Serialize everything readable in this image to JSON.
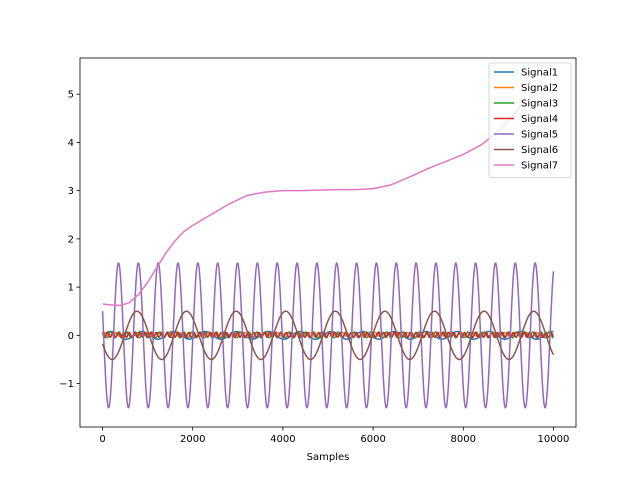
{
  "chart_data": {
    "type": "line",
    "title": "",
    "xlabel": "Samples",
    "ylabel": "",
    "xlim": [
      -500,
      10500
    ],
    "ylim": [
      -1.9,
      5.75
    ],
    "x_ticks": [
      0,
      2000,
      4000,
      6000,
      8000,
      10000
    ],
    "x_tick_labels": [
      "0",
      "2000",
      "4000",
      "6000",
      "8000",
      "10000"
    ],
    "y_ticks": [
      -1,
      0,
      1,
      2,
      3,
      4,
      5
    ],
    "y_tick_labels": [
      "−1",
      "0",
      "1",
      "2",
      "3",
      "4",
      "5"
    ],
    "grid": false,
    "legend_position": "top-right",
    "series": [
      {
        "name": "Signal1",
        "color": "#1f77b4",
        "kind": "oscillation",
        "amplitude": 0.08,
        "offset": 0,
        "period": 700,
        "x_range": [
          0,
          10000
        ]
      },
      {
        "name": "Signal2",
        "color": "#ff7f0e",
        "kind": "oscillation",
        "amplitude": 0.04,
        "offset": 0.02,
        "period": 240,
        "x_range": [
          0,
          10000
        ]
      },
      {
        "name": "Signal3",
        "color": "#2ca02c",
        "kind": "oscillation",
        "amplitude": 0.06,
        "offset": 0.01,
        "period": 180,
        "x_range": [
          0,
          10000
        ]
      },
      {
        "name": "Signal4",
        "color": "#d62728",
        "kind": "oscillation",
        "amplitude": 0.05,
        "offset": 0.01,
        "period": 120,
        "x_range": [
          0,
          10000
        ]
      },
      {
        "name": "Signal5",
        "color": "#9467bd",
        "kind": "oscillation",
        "amplitude": 1.5,
        "offset": 0,
        "period": 440,
        "x_range": [
          0,
          10000
        ]
      },
      {
        "name": "Signal6",
        "color": "#8c564b",
        "kind": "oscillation",
        "amplitude": 0.5,
        "offset": 0,
        "period": 1100,
        "x_range": [
          0,
          10000
        ]
      },
      {
        "name": "Signal7",
        "color": "#e377c2",
        "kind": "curve",
        "x_range": [
          0,
          9350
        ],
        "points": [
          [
            0,
            0.65
          ],
          [
            200,
            0.63
          ],
          [
            400,
            0.62
          ],
          [
            600,
            0.68
          ],
          [
            800,
            0.85
          ],
          [
            1000,
            1.1
          ],
          [
            1200,
            1.4
          ],
          [
            1400,
            1.7
          ],
          [
            1600,
            1.95
          ],
          [
            1800,
            2.15
          ],
          [
            2000,
            2.28
          ],
          [
            2400,
            2.5
          ],
          [
            2800,
            2.72
          ],
          [
            3200,
            2.9
          ],
          [
            3600,
            2.97
          ],
          [
            4000,
            3.0
          ],
          [
            4400,
            3.0
          ],
          [
            4800,
            3.01
          ],
          [
            5200,
            3.02
          ],
          [
            5600,
            3.02
          ],
          [
            6000,
            3.04
          ],
          [
            6400,
            3.12
          ],
          [
            6800,
            3.28
          ],
          [
            7200,
            3.45
          ],
          [
            7600,
            3.6
          ],
          [
            8000,
            3.75
          ],
          [
            8400,
            3.95
          ],
          [
            8800,
            4.25
          ],
          [
            9100,
            4.55
          ],
          [
            9350,
            4.85
          ]
        ]
      }
    ]
  }
}
